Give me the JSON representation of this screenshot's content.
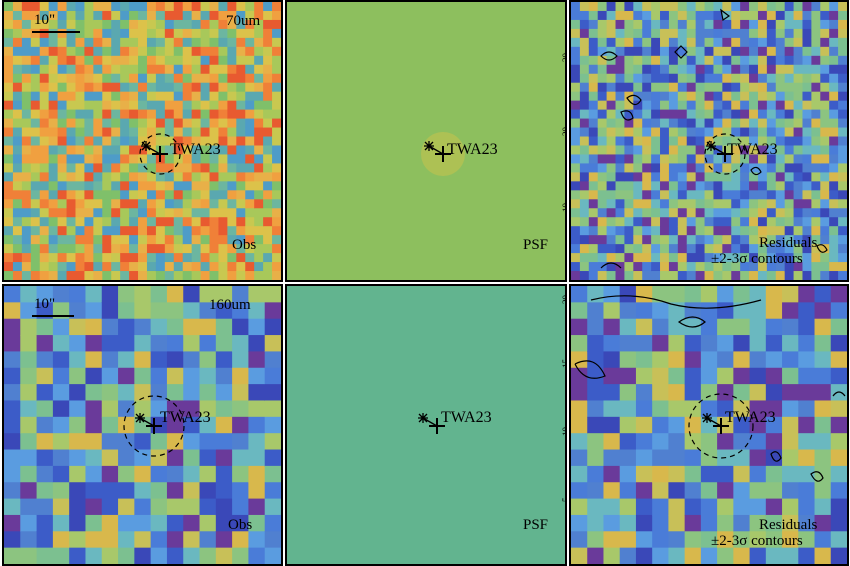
{
  "figure": {
    "rows": [
      {
        "band": "70um",
        "scale_bar_label": "10\"",
        "source_label": "TWA23",
        "panels": [
          {
            "id": "obs",
            "caption": "Obs",
            "colormap": "noise",
            "cells": 31,
            "seed": 11
          },
          {
            "id": "psf",
            "caption": "PSF",
            "colormap": "flat-green",
            "ticks": [
              "30",
              "20",
              "10"
            ]
          },
          {
            "id": "residuals",
            "caption_line1": "Residuals",
            "caption_line2": "±2-3σ contours",
            "colormap": "noise-blue",
            "cells": 31,
            "seed": 23
          }
        ]
      },
      {
        "band": "160um",
        "scale_bar_label": "10\"",
        "source_label": "TWA23",
        "panels": [
          {
            "id": "obs",
            "caption": "Obs",
            "colormap": "noise",
            "cells": 17,
            "seed": 37
          },
          {
            "id": "psf",
            "caption": "PSF",
            "colormap": "flat-teal",
            "ticks": [
              "20",
              "15",
              "10",
              "5"
            ]
          },
          {
            "id": "residuals",
            "caption_line1": "Residuals",
            "caption_line2": "±2-3σ contours",
            "colormap": "noise-blue",
            "cells": 17,
            "seed": 41
          }
        ]
      }
    ],
    "colors": {
      "psf_row1": "#8dbf5e",
      "psf_row2": "#62b48f",
      "border": "#000000"
    }
  }
}
